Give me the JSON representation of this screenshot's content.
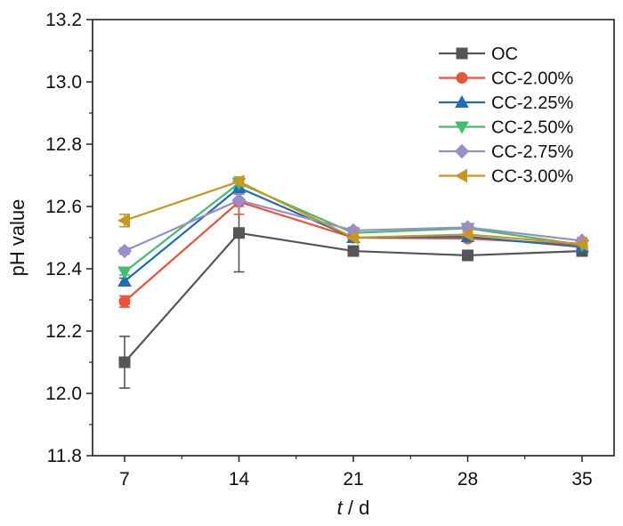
{
  "chart_data": {
    "type": "line",
    "title": "",
    "ylabel": "pH value",
    "xlabel_italic": "t",
    "xlabel_rest": " / d",
    "x": [
      7,
      14,
      21,
      28,
      35
    ],
    "xticks": [
      "7",
      "14",
      "21",
      "28",
      "35"
    ],
    "ylim": [
      11.8,
      13.2
    ],
    "yticks": [
      "11.8",
      "12.0",
      "12.2",
      "12.4",
      "12.6",
      "12.8",
      "13.0",
      "13.2"
    ],
    "grid": false,
    "legend_position": "top-right",
    "series": [
      {
        "name": "OC",
        "color": "#555555",
        "marker": "square",
        "values": [
          12.1,
          12.515,
          12.457,
          12.443,
          12.457
        ],
        "errors": [
          0.083,
          0.125,
          0.012,
          0.01,
          0.01
        ]
      },
      {
        "name": "CC-2.00%",
        "color": "#e8553b",
        "marker": "circle",
        "values": [
          12.295,
          12.615,
          12.5,
          12.497,
          12.477
        ],
        "errors": [
          0.018,
          0.04,
          0.01,
          0.01,
          0.01
        ]
      },
      {
        "name": "CC-2.25%",
        "color": "#1f6db5",
        "marker": "triangle-up",
        "values": [
          12.36,
          12.66,
          12.5,
          12.503,
          12.47
        ],
        "errors": [
          0.01,
          0.02,
          0.01,
          0.01,
          0.01
        ]
      },
      {
        "name": "CC-2.50%",
        "color": "#3fbf6e",
        "marker": "triangle-down",
        "values": [
          12.39,
          12.675,
          12.515,
          12.53,
          12.477
        ],
        "errors": [
          0.01,
          0.015,
          0.01,
          0.01,
          0.01
        ]
      },
      {
        "name": "CC-2.75%",
        "color": "#9b8ec8",
        "marker": "diamond",
        "values": [
          12.457,
          12.62,
          12.523,
          12.533,
          12.49
        ],
        "errors": [
          0.01,
          0.02,
          0.01,
          0.01,
          0.01
        ]
      },
      {
        "name": "CC-3.00%",
        "color": "#c9961f",
        "marker": "triangle-left",
        "values": [
          12.555,
          12.68,
          12.5,
          12.51,
          12.48
        ],
        "errors": [
          0.02,
          0.015,
          0.01,
          0.01,
          0.01
        ]
      }
    ]
  }
}
